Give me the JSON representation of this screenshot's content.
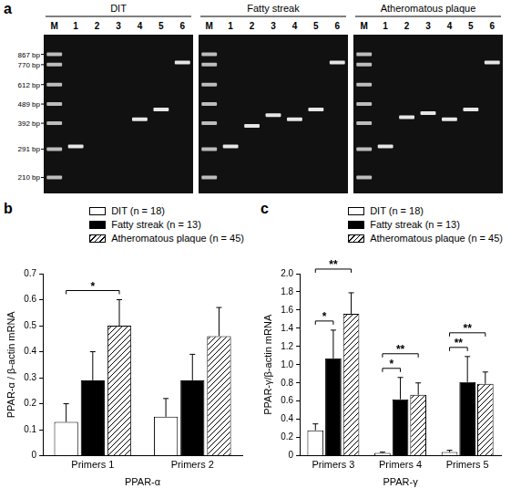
{
  "gel": {
    "panel": "a",
    "log": "y",
    "ylim": [
      190,
      1000
    ],
    "yticks": [
      {
        "value": 867,
        "label": "867 bp"
      },
      {
        "value": 770,
        "label": "770 bp"
      },
      {
        "value": 612,
        "label": "612 bp"
      },
      {
        "value": 489,
        "label": "489 bp"
      },
      {
        "value": 392,
        "label": "392 bp"
      },
      {
        "value": 291,
        "label": "291 bp"
      },
      {
        "value": 210,
        "label": "210 bp"
      }
    ],
    "lanes": [
      "M",
      "1",
      "2",
      "3",
      "4",
      "5",
      "6"
    ],
    "panels": [
      {
        "title": "DIT",
        "bands": [
          [
            867,
            770,
            612,
            489,
            392,
            291,
            210
          ],
          [
            300
          ],
          [],
          [],
          [
            410
          ],
          [
            460
          ],
          [
            790
          ]
        ]
      },
      {
        "title": "Fatty streak",
        "bands": [
          [
            867,
            770,
            612,
            489,
            392,
            291,
            210
          ],
          [
            300
          ],
          [
            380
          ],
          [
            430
          ],
          [
            410
          ],
          [
            460
          ],
          [
            790
          ]
        ]
      },
      {
        "title": "Atheromatous plaque",
        "bands": [
          [
            867,
            770,
            612,
            489,
            392,
            291,
            210
          ],
          [
            300
          ],
          [
            420
          ],
          [
            440
          ],
          [
            410
          ],
          [
            460
          ],
          [
            790
          ]
        ]
      }
    ]
  },
  "chart_data": [
    {
      "panel": "b",
      "type": "bar",
      "y_label": "PPAR-α / β-actin mRNA",
      "x_label": "PPAR-α",
      "categories": [
        "Primers 1",
        "Primers 2"
      ],
      "series": [
        {
          "name": "DIT (n = 18)",
          "color": "#ffffff",
          "values": [
            0.13,
            0.15
          ],
          "errors": [
            0.07,
            0.07
          ]
        },
        {
          "name": "Fatty streak (n = 13)",
          "color": "#000000",
          "values": [
            0.29,
            0.29
          ],
          "errors": [
            0.11,
            0.1
          ]
        },
        {
          "name": "Atheromatous plaque (n = 45)",
          "color": "#ffffff",
          "line_style": "hatched",
          "values": [
            0.5,
            0.46
          ],
          "errors": [
            0.1,
            0.11
          ]
        }
      ],
      "ylim": [
        0,
        0.7
      ],
      "yticks": [
        0,
        0.1,
        0.2,
        0.3,
        0.4,
        0.5,
        0.6,
        0.7
      ],
      "grid": false,
      "legend": "top right",
      "annotations": [
        {
          "category": "Primers 1",
          "between": [
            "DIT (n = 18)",
            "Atheromatous plaque (n = 45)"
          ],
          "label": "*"
        }
      ]
    },
    {
      "panel": "c",
      "type": "bar",
      "y_label": "PPAR-γ/β-actin mRNA",
      "x_label": "PPAR-γ",
      "categories": [
        "Primers 3",
        "Primers 4",
        "Primers 5"
      ],
      "series": [
        {
          "name": "DIT (n = 18)",
          "color": "#ffffff",
          "values": [
            0.28,
            0.03,
            0.04
          ],
          "errors": [
            0.07,
            0.01,
            0.02
          ]
        },
        {
          "name": "Fatty streak (n = 13)",
          "color": "#000000",
          "values": [
            1.07,
            0.62,
            0.81
          ],
          "errors": [
            0.31,
            0.24,
            0.28
          ]
        },
        {
          "name": "Atheromatous plaque (n = 45)",
          "color": "#ffffff",
          "line_style": "hatched",
          "values": [
            1.56,
            0.67,
            0.79
          ],
          "errors": [
            0.23,
            0.13,
            0.13
          ]
        }
      ],
      "ylim": [
        0,
        2
      ],
      "yticks": [
        0,
        0.2,
        0.4,
        0.6,
        0.8,
        {
          "value": 1,
          "label": "1.0"
        },
        1.2,
        1.4,
        1.6,
        1.8,
        {
          "value": 2,
          "label": "2.0"
        }
      ],
      "grid": false,
      "legend": "top right",
      "annotations": [
        {
          "category": "Primers 3",
          "between": [
            "DIT (n = 18)",
            "Fatty streak (n = 13)"
          ],
          "label": "*"
        },
        {
          "category": "Primers 3",
          "between": [
            "DIT (n = 18)",
            "Atheromatous plaque (n = 45)"
          ],
          "label": "**"
        },
        {
          "category": "Primers 4",
          "between": [
            "DIT (n = 18)",
            "Fatty streak (n = 13)"
          ],
          "label": "*"
        },
        {
          "category": "Primers 4",
          "between": [
            "DIT (n = 18)",
            "Atheromatous plaque (n = 45)"
          ],
          "label": "**"
        },
        {
          "category": "Primers 5",
          "between": [
            "DIT (n = 18)",
            "Fatty streak (n = 13)"
          ],
          "label": "**"
        },
        {
          "category": "Primers 5",
          "between": [
            "DIT (n = 18)",
            "Atheromatous plaque (n = 45)"
          ],
          "label": "**"
        }
      ]
    }
  ]
}
